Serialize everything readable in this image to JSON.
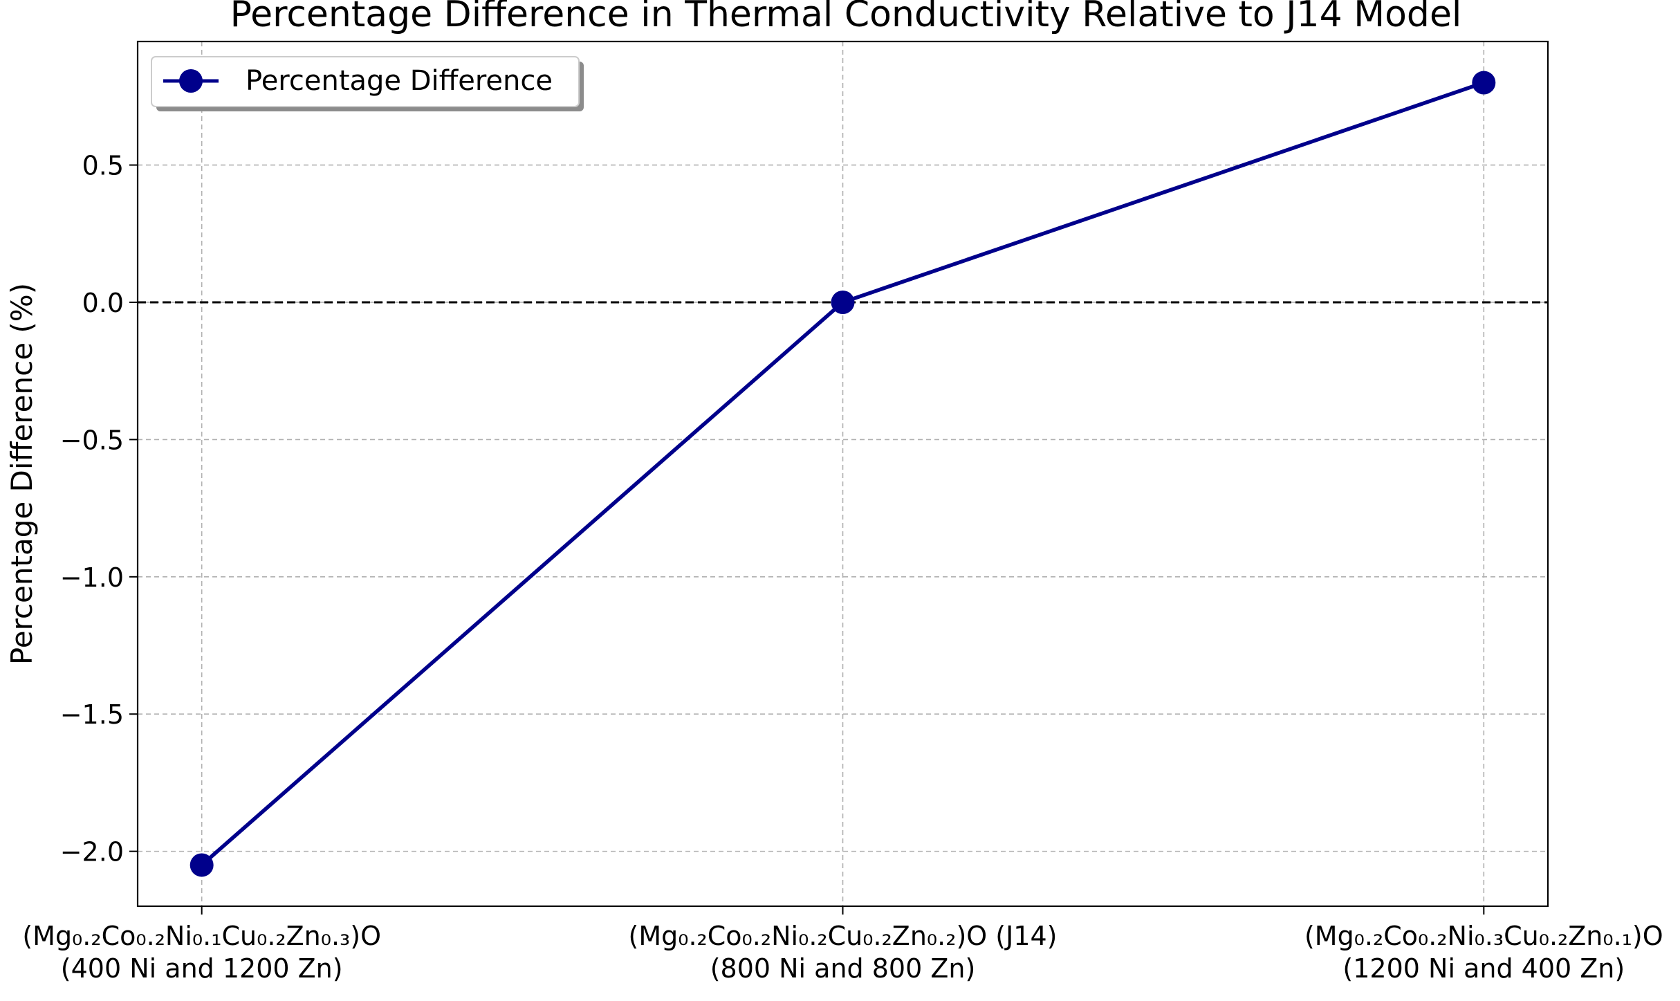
{
  "chart_data": {
    "type": "line",
    "title": "Percentage Difference in Thermal Conductivity Relative to J14 Model",
    "xlabel": "",
    "ylabel": "Percentage Difference (%)",
    "categories": [
      [
        "(Mg₀.₂Co₀.₂Ni₀.₁Cu₀.₂Zn₀.₃)O",
        "(400 Ni and 1200 Zn)"
      ],
      [
        "(Mg₀.₂Co₀.₂Ni₀.₂Cu₀.₂Zn₀.₂)O (J14)",
        "(800 Ni and 800 Zn)"
      ],
      [
        "(Mg₀.₂Co₀.₂Ni₀.₃Cu₀.₂Zn₀.₁)O",
        "(1200 Ni and 400 Zn)"
      ]
    ],
    "series": [
      {
        "name": "Percentage Difference",
        "values": [
          -2.05,
          0.0,
          0.8
        ],
        "color": "#00008b",
        "marker": "circle"
      }
    ],
    "reference_line": {
      "y": 0,
      "style": "dashed",
      "color": "#000000"
    },
    "ylim": [
      -2.2,
      0.95
    ],
    "yticks": [
      -2.0,
      -1.5,
      -1.0,
      -0.5,
      0.0,
      0.5
    ],
    "ytick_labels": [
      "−2.0",
      "−1.5",
      "−1.0",
      "−0.5",
      "0.0",
      "0.5"
    ],
    "grid": true,
    "legend_position": "top-left"
  }
}
